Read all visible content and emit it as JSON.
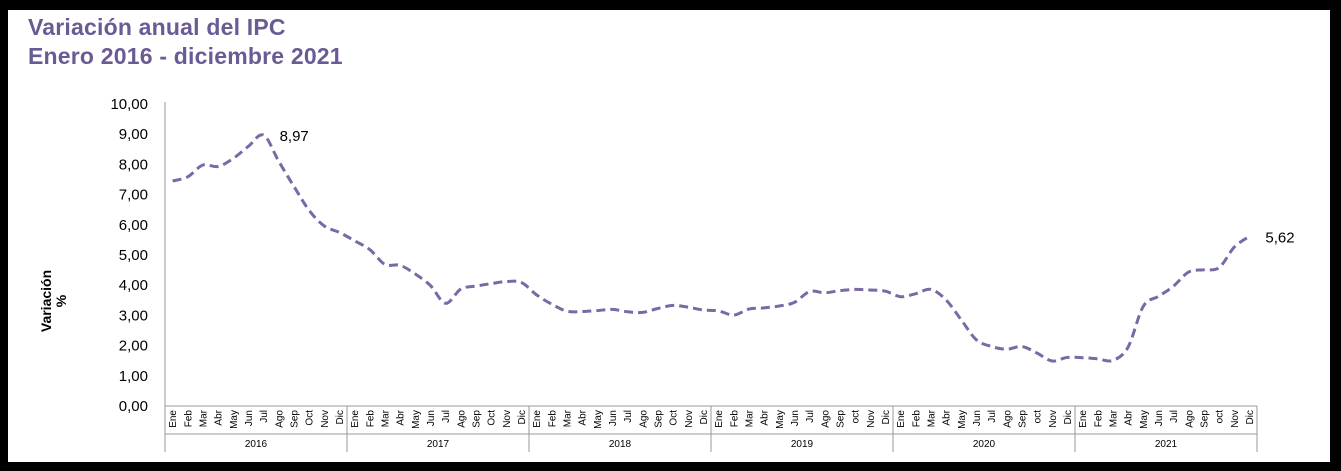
{
  "chart_data": {
    "type": "line",
    "title": "Variación anual del IPC",
    "subtitle": "Enero 2016 - diciembre 2021",
    "ylabel": "Variación %",
    "xlabel": "",
    "ylim": [
      0,
      10
    ],
    "yticks": [
      "0,00",
      "1,00",
      "2,00",
      "3,00",
      "4,00",
      "5,00",
      "6,00",
      "7,00",
      "8,00",
      "9,00",
      "10,00"
    ],
    "grid": false,
    "line_color": "#7b68a6",
    "line_style": "dashed",
    "years": [
      {
        "label": "2016",
        "months": [
          "Ene",
          "Feb",
          "Mar",
          "Abr",
          "May",
          "Jun",
          "Jul",
          "Ago",
          "Sep",
          "Oct",
          "Nov",
          "Dic"
        ]
      },
      {
        "label": "2017",
        "months": [
          "Ene",
          "Feb",
          "Mar",
          "Abr",
          "May",
          "Jun",
          "Jul",
          "Ago",
          "Sep",
          "Oct",
          "Nov",
          "Dic"
        ]
      },
      {
        "label": "2018",
        "months": [
          "Ene",
          "Feb",
          "Mar",
          "Abr",
          "May",
          "Jun",
          "Jul",
          "Ago",
          "Sep",
          "Oct",
          "Nov",
          "Dic"
        ]
      },
      {
        "label": "2019",
        "months": [
          "Ene",
          "Feb",
          "Mar",
          "Abr",
          "May",
          "Jun",
          "Jul",
          "Ago",
          "Sep",
          "oct",
          "Nov",
          "Dic"
        ]
      },
      {
        "label": "2020",
        "months": [
          "Ene",
          "Feb",
          "Mar",
          "Abr",
          "May",
          "Jun",
          "Jul",
          "Ago",
          "Sep",
          "oct",
          "Nov",
          "Dic"
        ]
      },
      {
        "label": "2021",
        "months": [
          "Ene",
          "Feb",
          "Mar",
          "Abr",
          "May",
          "Jun",
          "Jul",
          "Ago",
          "Sep",
          "oct",
          "Nov",
          "Dic"
        ]
      }
    ],
    "values": [
      7.45,
      7.59,
      7.98,
      7.93,
      8.2,
      8.6,
      8.97,
      8.1,
      7.27,
      6.48,
      5.96,
      5.75,
      5.47,
      5.18,
      4.69,
      4.66,
      4.37,
      3.99,
      3.4,
      3.87,
      3.97,
      4.05,
      4.12,
      4.09,
      3.68,
      3.37,
      3.14,
      3.13,
      3.16,
      3.2,
      3.12,
      3.1,
      3.23,
      3.33,
      3.27,
      3.18,
      3.15,
      3.01,
      3.21,
      3.25,
      3.31,
      3.43,
      3.79,
      3.75,
      3.82,
      3.86,
      3.84,
      3.8,
      3.62,
      3.72,
      3.86,
      3.51,
      2.85,
      2.19,
      1.97,
      1.88,
      1.97,
      1.75,
      1.49,
      1.61,
      1.6,
      1.56,
      1.51,
      1.95,
      3.3,
      3.63,
      3.97,
      4.44,
      4.51,
      4.58,
      5.26,
      5.62
    ],
    "annotations": [
      {
        "index": 6,
        "text": "8,97"
      },
      {
        "index": 71,
        "text": "5,62"
      }
    ]
  }
}
